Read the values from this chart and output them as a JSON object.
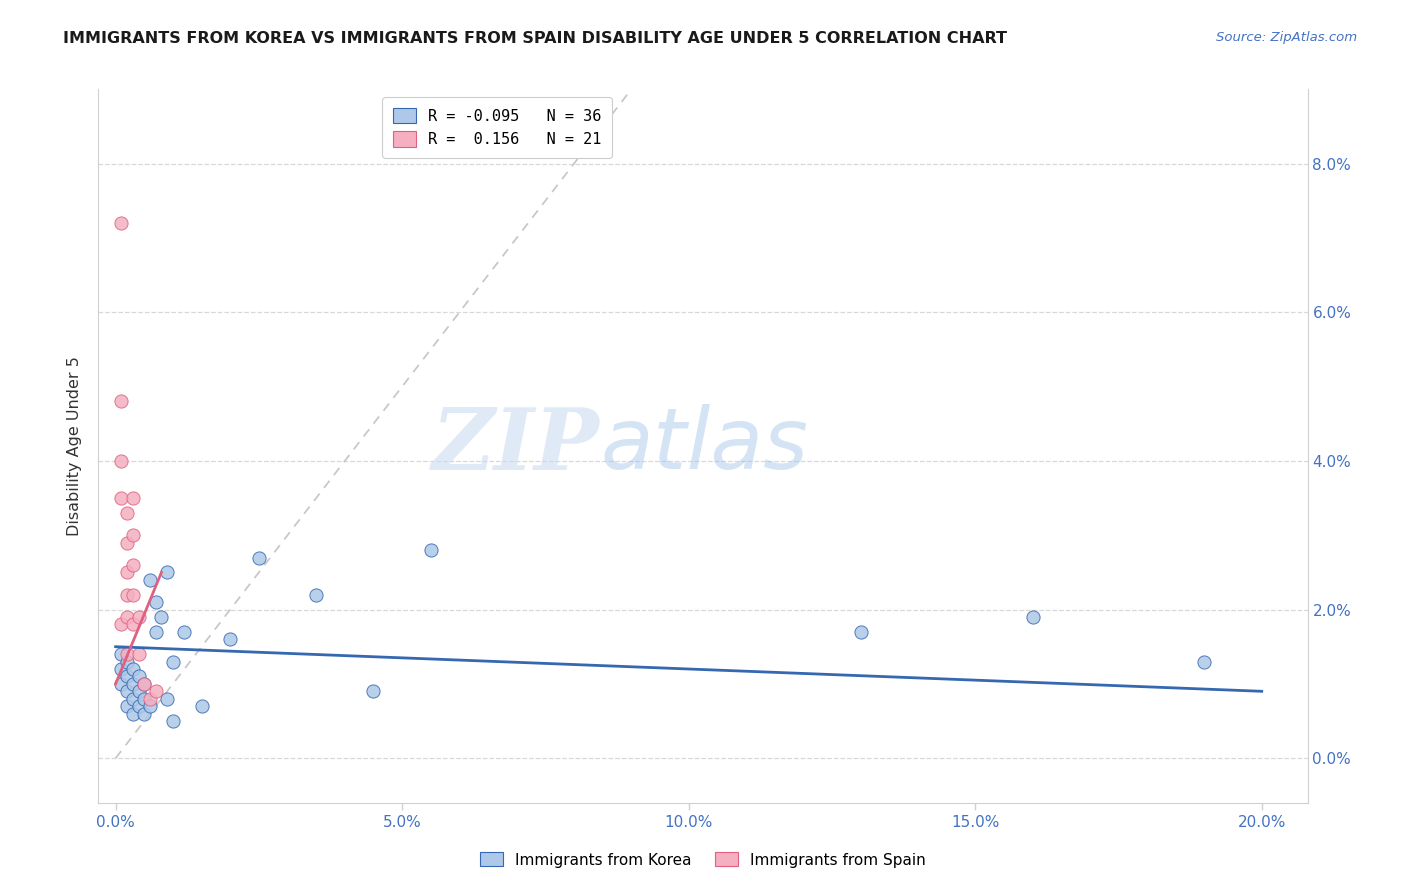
{
  "title": "IMMIGRANTS FROM KOREA VS IMMIGRANTS FROM SPAIN DISABILITY AGE UNDER 5 CORRELATION CHART",
  "source": "Source: ZipAtlas.com",
  "xlabel_ticks": [
    "0.0%",
    "5.0%",
    "10.0%",
    "15.0%",
    "20.0%"
  ],
  "xlabel_vals": [
    0.0,
    0.05,
    0.1,
    0.15,
    0.2
  ],
  "ylabel": "Disability Age Under 5",
  "ylabel_ticks": [
    "0.0%",
    "2.0%",
    "4.0%",
    "6.0%",
    "8.0%"
  ],
  "ylabel_vals": [
    0.0,
    0.02,
    0.04,
    0.06,
    0.08
  ],
  "xlim": [
    -0.003,
    0.208
  ],
  "ylim": [
    -0.006,
    0.09
  ],
  "korea_R": "-0.095",
  "korea_N": "36",
  "spain_R": "0.156",
  "spain_N": "21",
  "korea_color": "#adc8e8",
  "spain_color": "#f5afc0",
  "korea_line_color": "#3568b0",
  "spain_line_color": "#e06080",
  "diagonal_color": "#c8c8c8",
  "korea_scatter_x": [
    0.001,
    0.001,
    0.001,
    0.002,
    0.002,
    0.002,
    0.002,
    0.003,
    0.003,
    0.003,
    0.003,
    0.004,
    0.004,
    0.004,
    0.005,
    0.005,
    0.005,
    0.006,
    0.006,
    0.007,
    0.007,
    0.008,
    0.009,
    0.009,
    0.01,
    0.01,
    0.012,
    0.015,
    0.02,
    0.025,
    0.035,
    0.045,
    0.055,
    0.13,
    0.16,
    0.19
  ],
  "korea_scatter_y": [
    0.014,
    0.012,
    0.01,
    0.013,
    0.011,
    0.009,
    0.007,
    0.012,
    0.01,
    0.008,
    0.006,
    0.011,
    0.009,
    0.007,
    0.01,
    0.008,
    0.006,
    0.024,
    0.007,
    0.021,
    0.017,
    0.019,
    0.025,
    0.008,
    0.013,
    0.005,
    0.017,
    0.007,
    0.016,
    0.027,
    0.022,
    0.009,
    0.028,
    0.017,
    0.019,
    0.013
  ],
  "spain_scatter_x": [
    0.001,
    0.001,
    0.001,
    0.001,
    0.001,
    0.002,
    0.002,
    0.002,
    0.002,
    0.002,
    0.002,
    0.003,
    0.003,
    0.003,
    0.003,
    0.003,
    0.004,
    0.004,
    0.005,
    0.006,
    0.007
  ],
  "spain_scatter_y": [
    0.072,
    0.048,
    0.04,
    0.035,
    0.018,
    0.033,
    0.029,
    0.025,
    0.022,
    0.019,
    0.014,
    0.035,
    0.03,
    0.026,
    0.022,
    0.018,
    0.019,
    0.014,
    0.01,
    0.008,
    0.009
  ],
  "korea_trendline": [
    0.0,
    0.2,
    0.015,
    0.009
  ],
  "spain_trendline": [
    0.0,
    0.008,
    0.01,
    0.025
  ],
  "watermark_zip": "ZIP",
  "watermark_atlas": "atlas",
  "bg_color": "#ffffff",
  "grid_color": "#d8d8d8"
}
